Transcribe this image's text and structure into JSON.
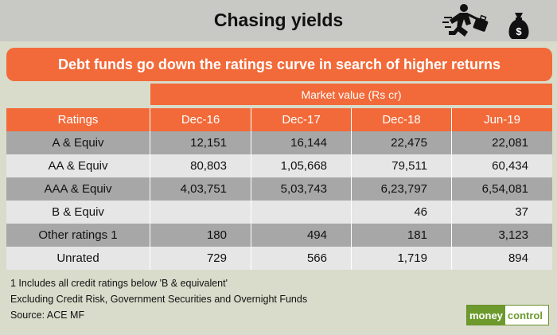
{
  "title": "Chasing yields",
  "subtitle": "Debt funds go down the ratings curve in search of higher returns",
  "market_value_label": "Market value (Rs cr)",
  "chart_data": {
    "type": "table",
    "columns": [
      "Ratings",
      "Dec-16",
      "Dec-17",
      "Dec-18",
      "Jun-19"
    ],
    "rows": [
      [
        "A & Equiv",
        "12,151",
        "16,144",
        "22,475",
        "22,081"
      ],
      [
        "AA & Equiv",
        "80,803",
        "1,05,668",
        "79,511",
        "60,434"
      ],
      [
        "AAA & Equiv",
        "4,03,751",
        "5,03,743",
        "6,23,797",
        "6,54,081"
      ],
      [
        "B & Equiv",
        "",
        "",
        "46",
        "37"
      ],
      [
        "Other ratings 1",
        "180",
        "494",
        "181",
        "3,123"
      ],
      [
        "Unrated",
        "729",
        "566",
        "1,719",
        "894"
      ]
    ]
  },
  "notes": [
    "1 Includes all credit ratings below 'B & equivalent'",
    "Excluding Credit Risk, Government Securities and Overnight Funds",
    "Source: ACE MF"
  ],
  "logo": {
    "part1": "money",
    "part2": "control"
  },
  "icons": {
    "runner": "runner-with-briefcase-icon",
    "moneybag": "money-bag-icon"
  },
  "colors": {
    "accent": "#f26a39",
    "row_dark": "#a7a7a7",
    "row_light": "#e6e6e6",
    "background": "#d9dccb"
  }
}
